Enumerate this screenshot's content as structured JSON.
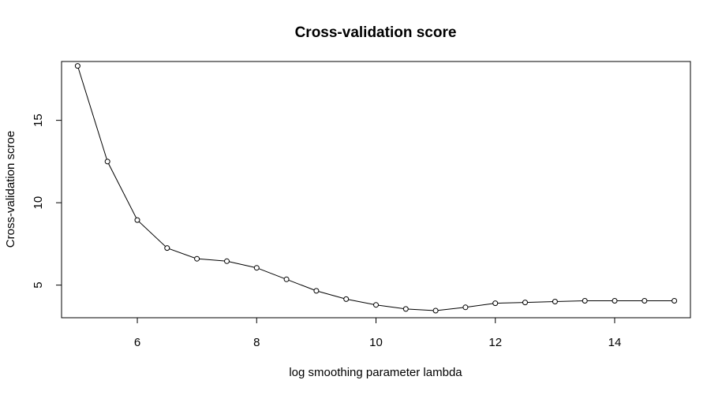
{
  "chart_data": {
    "type": "line",
    "title": "Cross-validation score",
    "xlabel": "log smoothing parameter lambda",
    "ylabel": "Cross-validation scroe",
    "xlim": [
      4.73,
      15.27
    ],
    "ylim": [
      3.02,
      18.57
    ],
    "xticks": [
      6,
      8,
      10,
      12,
      14
    ],
    "yticks": [
      5,
      10,
      15
    ],
    "grid": false,
    "legend": "none",
    "markers": "open-circle",
    "x": [
      5,
      5.5,
      6,
      6.5,
      7,
      7.5,
      8,
      8.5,
      9,
      9.5,
      10,
      10.5,
      11,
      11.5,
      12,
      12.5,
      13,
      13.5,
      14,
      14.5,
      15
    ],
    "y": [
      18.3,
      12.5,
      8.95,
      7.25,
      6.6,
      6.45,
      6.05,
      5.35,
      4.65,
      4.15,
      3.8,
      3.55,
      3.45,
      3.65,
      3.9,
      3.95,
      4.0,
      4.05,
      4.05,
      4.05,
      4.05
    ]
  }
}
